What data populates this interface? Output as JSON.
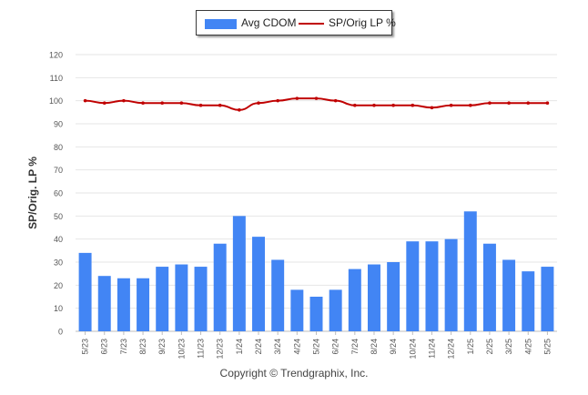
{
  "chart_data": {
    "type": "bar",
    "title": "",
    "xlabel": "",
    "ylabel": "SP/Orig. LP %",
    "ylim": [
      0,
      120
    ],
    "yticks": [
      0,
      10,
      20,
      30,
      40,
      50,
      60,
      70,
      80,
      90,
      100,
      110,
      120
    ],
    "grid": true,
    "legend_position": "top-center",
    "categories": [
      "5/23",
      "6/23",
      "7/23",
      "8/23",
      "9/23",
      "10/23",
      "11/23",
      "12/23",
      "1/24",
      "2/24",
      "3/24",
      "4/24",
      "5/24",
      "6/24",
      "7/24",
      "8/24",
      "9/24",
      "10/24",
      "11/24",
      "12/24",
      "1/25",
      "2/25",
      "3/25",
      "4/25",
      "5/25"
    ],
    "series": [
      {
        "name": "Avg CDOM",
        "type": "bar",
        "color": "#4285f4",
        "values": [
          34,
          24,
          23,
          23,
          28,
          29,
          28,
          38,
          50,
          41,
          31,
          18,
          15,
          18,
          27,
          29,
          30,
          39,
          39,
          40,
          52,
          38,
          31,
          26,
          28
        ]
      },
      {
        "name": "SP/Orig LP %",
        "type": "line",
        "color": "#c00000",
        "values": [
          100,
          99,
          100,
          99,
          99,
          99,
          98,
          98,
          96,
          99,
          100,
          101,
          101,
          100,
          98,
          98,
          98,
          98,
          97,
          98,
          98,
          99,
          99,
          99,
          99
        ]
      }
    ]
  },
  "footer": {
    "copyright": "Copyright © Trendgraphix, Inc."
  }
}
